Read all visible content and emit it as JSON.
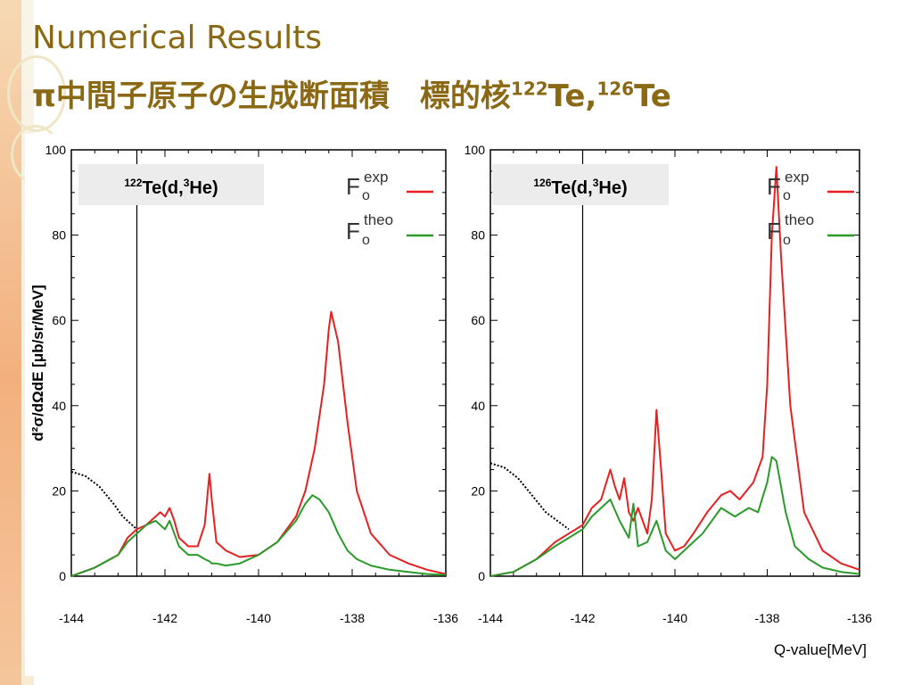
{
  "slide": {
    "title": "Numerical Results",
    "subtitle_main": "π中間子原子の生成断面積　標的核",
    "subtitle_iso1_mass": "122",
    "subtitle_iso1_rest": "Te,",
    "subtitle_iso2_mass": "126",
    "subtitle_iso2_rest": "Te"
  },
  "colors": {
    "title": "#8b6914",
    "exp": "#e82020",
    "theo": "#2a9a2a",
    "dotted": "#000000"
  },
  "chart_data": [
    {
      "type": "line",
      "label_mass": "122",
      "label_main": "Te(d,",
      "label_he_mass": "3",
      "label_he": "He)",
      "ylabel": "d²σ/dΩdE [μb/sr/MeV]",
      "xlabel": "",
      "xlim": [
        -144,
        -136
      ],
      "ylim": [
        0,
        100
      ],
      "xticks": [
        "-144",
        "-142",
        "-140",
        "-138",
        "-136"
      ],
      "yticks": [
        "0",
        "20",
        "40",
        "60",
        "80",
        "100"
      ],
      "threshold_x": -142.6,
      "legend": {
        "exp_F": "F",
        "exp_sub": "o",
        "exp_sup": "exp",
        "theo_F": "F",
        "theo_sub": "o",
        "theo_sup": "theo",
        "position": "top-right"
      },
      "series": [
        {
          "name": "exp",
          "x": [
            -144,
            -143.5,
            -143,
            -142.8,
            -142.6,
            -142.4,
            -142.2,
            -142.1,
            -142,
            -141.9,
            -141.8,
            -141.7,
            -141.5,
            -141.3,
            -141.15,
            -141.05,
            -141,
            -140.9,
            -140.7,
            -140.4,
            -140,
            -139.6,
            -139.2,
            -139,
            -138.8,
            -138.6,
            -138.5,
            -138.45,
            -138.3,
            -138.1,
            -137.9,
            -137.6,
            -137.2,
            -136.8,
            -136.4,
            -136
          ],
          "y": [
            0,
            2,
            5,
            9,
            11,
            12,
            14,
            15,
            14,
            16,
            13,
            9,
            7,
            7,
            12,
            24,
            18,
            8,
            6,
            4.5,
            5,
            8,
            14,
            20,
            30,
            45,
            58,
            62,
            55,
            36,
            20,
            10,
            5,
            3,
            1.5,
            0.5
          ]
        },
        {
          "name": "theo",
          "x": [
            -144,
            -143.5,
            -143,
            -142.8,
            -142.6,
            -142.4,
            -142.2,
            -142.1,
            -142,
            -141.9,
            -141.8,
            -141.7,
            -141.5,
            -141.3,
            -141.15,
            -141.05,
            -141,
            -140.9,
            -140.7,
            -140.4,
            -140,
            -139.6,
            -139.2,
            -139,
            -138.85,
            -138.7,
            -138.5,
            -138.3,
            -138.1,
            -137.9,
            -137.6,
            -137.2,
            -136.8,
            -136.4,
            -136
          ],
          "y": [
            0,
            2,
            5,
            8,
            10,
            12,
            13,
            12,
            11,
            13,
            10,
            7,
            5,
            5,
            4,
            3.5,
            3,
            3,
            2.5,
            3,
            5,
            8,
            13,
            17,
            19,
            18,
            15,
            10,
            6,
            4,
            2.5,
            1.5,
            1,
            0.5,
            0.3
          ]
        },
        {
          "name": "dotted",
          "x": [
            -144,
            -143.7,
            -143.4,
            -143.1,
            -142.9,
            -142.6
          ],
          "y": [
            24.5,
            23.5,
            21,
            17,
            14,
            11
          ]
        }
      ]
    },
    {
      "type": "line",
      "label_mass": "126",
      "label_main": "Te(d,",
      "label_he_mass": "3",
      "label_he": "He)",
      "ylabel": "",
      "xlabel": "Q-value[MeV]",
      "xlim": [
        -144,
        -136
      ],
      "ylim": [
        0,
        100
      ],
      "xticks": [
        "-144",
        "-142",
        "-140",
        "-138",
        "-136"
      ],
      "yticks": [
        "0",
        "20",
        "40",
        "60",
        "80",
        "100"
      ],
      "threshold_x": -142,
      "legend": {
        "exp_F": "F",
        "exp_sub": "o",
        "exp_sup": "exp",
        "theo_F": "F",
        "theo_sub": "o",
        "theo_sup": "theo",
        "position": "top-right"
      },
      "series": [
        {
          "name": "exp",
          "x": [
            -144,
            -143.5,
            -143,
            -142.6,
            -142.3,
            -142,
            -141.8,
            -141.6,
            -141.4,
            -141.3,
            -141.2,
            -141.1,
            -141,
            -140.9,
            -140.8,
            -140.6,
            -140.5,
            -140.4,
            -140.3,
            -140.2,
            -140,
            -139.8,
            -139.6,
            -139.3,
            -139,
            -138.8,
            -138.6,
            -138.3,
            -138.1,
            -138,
            -137.9,
            -137.8,
            -137.7,
            -137.5,
            -137.2,
            -136.8,
            -136.4,
            -136
          ],
          "y": [
            0,
            1,
            4,
            8,
            10,
            12,
            16,
            18,
            25,
            21,
            18,
            23,
            15,
            13,
            16,
            10,
            18,
            39,
            25,
            10,
            6,
            7,
            10,
            15,
            19,
            20,
            18,
            22,
            28,
            45,
            80,
            96,
            75,
            40,
            15,
            6,
            3,
            1.5
          ]
        },
        {
          "name": "theo",
          "x": [
            -144,
            -143.5,
            -143,
            -142.6,
            -142.3,
            -142,
            -141.8,
            -141.6,
            -141.4,
            -141.2,
            -141,
            -140.9,
            -140.8,
            -140.6,
            -140.4,
            -140.2,
            -140,
            -139.7,
            -139.4,
            -139,
            -138.7,
            -138.4,
            -138.2,
            -138,
            -137.9,
            -137.8,
            -137.6,
            -137.4,
            -137.1,
            -136.8,
            -136.4,
            -136
          ],
          "y": [
            0,
            1,
            4,
            7,
            9,
            11,
            14,
            16,
            18,
            13,
            9,
            17,
            7,
            8,
            13,
            6,
            4,
            7,
            10,
            16,
            14,
            16,
            15,
            22,
            28,
            27,
            15,
            7,
            4,
            2,
            1,
            0.5
          ]
        },
        {
          "name": "dotted",
          "x": [
            -144,
            -143.7,
            -143.4,
            -143.1,
            -142.8,
            -142.3
          ],
          "y": [
            26.5,
            25.5,
            23,
            19,
            15,
            11
          ]
        }
      ]
    }
  ]
}
